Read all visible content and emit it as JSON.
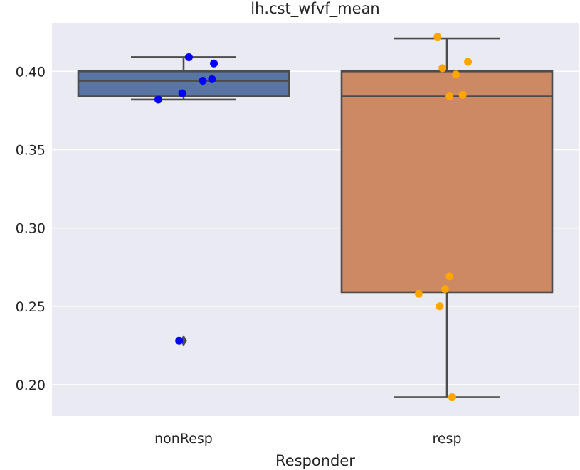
{
  "chart_data": {
    "type": "box",
    "title": "lh.cst_wfvf_mean",
    "xlabel": "Responder",
    "ylabel": "",
    "ylim": [
      0.18,
      0.431
    ],
    "yticks": [
      0.2,
      0.25,
      0.3,
      0.35,
      0.4
    ],
    "ytick_labels": [
      "0.20",
      "0.25",
      "0.30",
      "0.35",
      "0.40"
    ],
    "grid": true,
    "categories": [
      "nonResp",
      "resp"
    ],
    "boxes": [
      {
        "name": "nonResp",
        "color": "#5875a4",
        "point_color": "#0000ff",
        "whisker_low": 0.382,
        "q1": 0.384,
        "median": 0.394,
        "q3": 0.4,
        "whisker_high": 0.409,
        "outliers": [
          0.228
        ],
        "points": [
          {
            "y": 0.409,
            "jitter": 0.02
          },
          {
            "y": 0.405,
            "jitter": 0.115
          },
          {
            "y": 0.395,
            "jitter": 0.108
          },
          {
            "y": 0.394,
            "jitter": 0.073
          },
          {
            "y": 0.386,
            "jitter": -0.005
          },
          {
            "y": 0.382,
            "jitter": -0.096
          },
          {
            "y": 0.228,
            "jitter": -0.017
          }
        ]
      },
      {
        "name": "resp",
        "color": "#cc8963",
        "point_color": "#ffa500",
        "whisker_low": 0.192,
        "q1": 0.259,
        "median": 0.384,
        "q3": 0.4,
        "whisker_high": 0.421,
        "outliers": [],
        "points": [
          {
            "y": 0.422,
            "jitter": -0.036
          },
          {
            "y": 0.406,
            "jitter": 0.08
          },
          {
            "y": 0.402,
            "jitter": -0.017
          },
          {
            "y": 0.398,
            "jitter": 0.034
          },
          {
            "y": 0.385,
            "jitter": 0.06
          },
          {
            "y": 0.384,
            "jitter": 0.01
          },
          {
            "y": 0.269,
            "jitter": 0.01
          },
          {
            "y": 0.261,
            "jitter": -0.007
          },
          {
            "y": 0.258,
            "jitter": -0.107
          },
          {
            "y": 0.25,
            "jitter": -0.027
          },
          {
            "y": 0.192,
            "jitter": 0.02
          }
        ]
      }
    ]
  }
}
